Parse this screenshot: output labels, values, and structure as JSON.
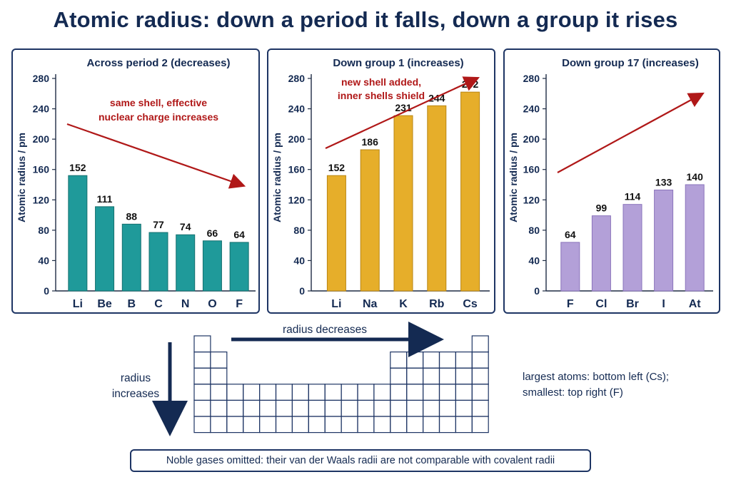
{
  "title": "Atomic radius: down a period it falls, down a group it rises",
  "charts": [
    {
      "type": "bar",
      "title": "Across period 2 (decreases)",
      "ylabel": "Atomic radius / pm",
      "ylim": [
        0,
        280
      ],
      "yticks": [
        0,
        40,
        80,
        120,
        160,
        200,
        240,
        280
      ],
      "categories": [
        "Li",
        "Be",
        "B",
        "C",
        "N",
        "O",
        "F"
      ],
      "values": [
        152,
        111,
        88,
        77,
        74,
        66,
        64
      ],
      "value_labels": [
        "152",
        "111",
        "88",
        "77",
        "74",
        "66",
        "64"
      ],
      "tick_labels": [
        "0",
        "40",
        "80",
        "120",
        "160",
        "200",
        "240",
        "280"
      ],
      "bar_color": "#1f9a9a",
      "bar_stroke": "#15706f",
      "annotation": [
        "same shell, effective",
        "nuclear charge increases"
      ],
      "trend": "down"
    },
    {
      "type": "bar",
      "title": "Down group 1 (increases)",
      "ylabel": "Atomic radius / pm",
      "ylim": [
        0,
        280
      ],
      "yticks": [
        0,
        40,
        80,
        120,
        160,
        200,
        240,
        280
      ],
      "categories": [
        "Li",
        "Na",
        "K",
        "Rb",
        "Cs"
      ],
      "values": [
        152,
        186,
        231,
        244,
        262
      ],
      "value_labels": [
        "152",
        "186",
        "231",
        "244",
        "262"
      ],
      "tick_labels": [
        "0",
        "40",
        "80",
        "120",
        "160",
        "200",
        "240",
        "280"
      ],
      "bar_color": "#e6ae2a",
      "bar_stroke": "#b98512",
      "annotation": [
        "new shell added,",
        "inner shells shield"
      ],
      "trend": "up"
    },
    {
      "type": "bar",
      "title": "Down group 17 (increases)",
      "ylabel": "Atomic radius / pm",
      "ylim": [
        0,
        280
      ],
      "yticks": [
        0,
        40,
        80,
        120,
        160,
        200,
        240,
        280
      ],
      "categories": [
        "F",
        "Cl",
        "Br",
        "I",
        "At"
      ],
      "values": [
        64,
        99,
        114,
        133,
        140
      ],
      "value_labels": [
        "64",
        "99",
        "114",
        "133",
        "140"
      ],
      "tick_labels": [
        "0",
        "40",
        "80",
        "120",
        "160",
        "200",
        "240",
        "280"
      ],
      "bar_color": "#b3a0d8",
      "bar_stroke": "#8a74bb",
      "annotation": [],
      "trend": "up"
    }
  ],
  "periodic_table": {
    "across_label": "radius decreases",
    "down_label": [
      "radius",
      "increases"
    ],
    "side_note": [
      "largest atoms: bottom left (Cs);",
      "smallest: top right (F)"
    ]
  },
  "footer_note": "Noble gases omitted: their van der Waals radii are not comparable with covalent radii",
  "colors": {
    "navy": "#142a52",
    "arrow_red": "#b01818",
    "grid_line": "#1e3564"
  }
}
